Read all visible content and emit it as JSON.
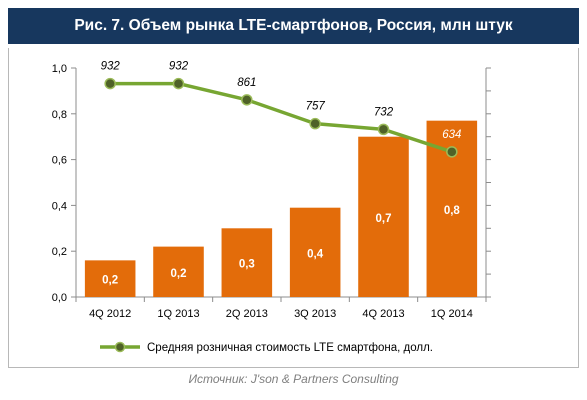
{
  "title": "Рис. 7. Объем рынка LTE-смартфонов, Россия, млн штук",
  "source": "Источник: J'son & Partners Consulting",
  "chart_data": {
    "type": "bar",
    "categories": [
      "4Q 2012",
      "1Q 2013",
      "2Q 2013",
      "3Q 2013",
      "4Q 2013",
      "1Q 2014"
    ],
    "bar_series": {
      "values": [
        0.16,
        0.22,
        0.3,
        0.39,
        0.7,
        0.77
      ],
      "labels": [
        "0,2",
        "0,2",
        "0,3",
        "0,4",
        "0,7",
        "0,8"
      ],
      "color": "#e36c0a"
    },
    "line_series": {
      "name": "Средняя розничная стоимость LTE смартфона, долл.",
      "values": [
        932,
        932,
        861,
        757,
        732,
        634
      ],
      "labels": [
        "932",
        "932",
        "861",
        "757",
        "732",
        "634"
      ],
      "color": "#77a632",
      "marker_color": "#4f6228"
    },
    "ylim": [
      0,
      1.0
    ],
    "y_ticks": [
      "0,0",
      "0,2",
      "0,4",
      "0,6",
      "0,8",
      "1,0"
    ],
    "secondary_ylim": [
      0,
      1000
    ],
    "grid": false,
    "legend_position": "bottom"
  }
}
